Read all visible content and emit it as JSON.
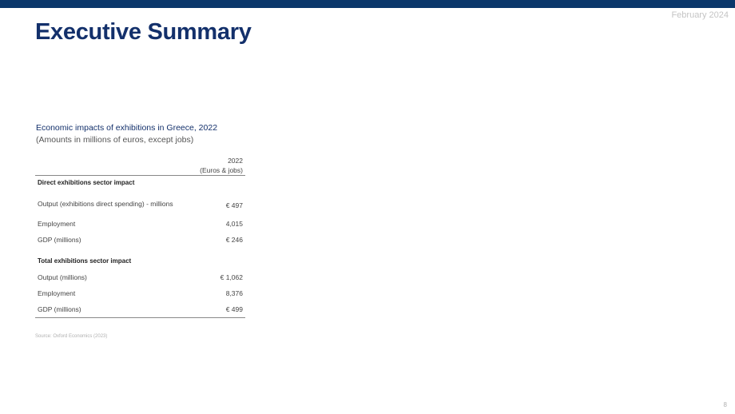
{
  "header": {
    "date": "February 2024",
    "title": "Executive Summary"
  },
  "table": {
    "title": "Economic impacts of exhibitions in Greece, 2022",
    "subtitle": "(Amounts in millions of euros, except jobs)",
    "column_header": [
      "2022",
      "(Euros & jobs)"
    ],
    "sections": [
      {
        "heading": "Direct exhibitions sector impact",
        "rows": [
          [
            "Output (exhibitions direct spending) - millions",
            "€ 497"
          ],
          [
            "Employment",
            "4,015"
          ],
          [
            "GDP (millions)",
            "€ 246"
          ]
        ]
      },
      {
        "heading": "Total exhibitions sector impact",
        "rows": [
          [
            "Output (millions)",
            "€ 1,062"
          ],
          [
            "Employment",
            "8,376"
          ],
          [
            "GDP (millions)",
            "€ 499"
          ]
        ]
      }
    ]
  },
  "footer": {
    "source": "Source: Oxford Economics (2023)",
    "page": "8"
  }
}
